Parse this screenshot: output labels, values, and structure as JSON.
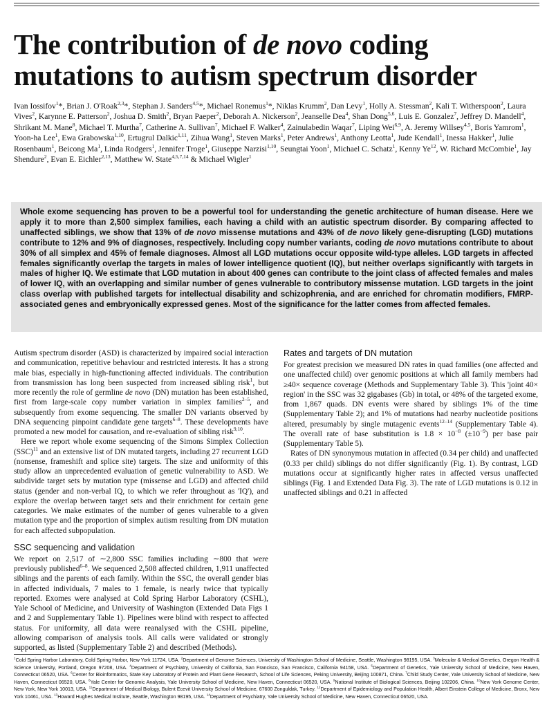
{
  "title": [
    "The contribution of ",
    {
      "i": "de novo"
    },
    " coding mutations to autism spectrum disorder"
  ],
  "authors": [
    "Ivan Iossifov",
    {
      "s": "1"
    },
    "*, Brian J. O'Roak",
    {
      "s": "2,3"
    },
    "*, Stephan J. Sanders",
    {
      "s": "4,5"
    },
    "*, Michael Ronemus",
    {
      "s": "1"
    },
    "*, Niklas Krumm",
    {
      "s": "2"
    },
    ", Dan Levy",
    {
      "s": "1"
    },
    ", Holly A. Stessman",
    {
      "s": "2"
    },
    ", Kali T. Witherspoon",
    {
      "s": "2"
    },
    ", Laura Vives",
    {
      "s": "2"
    },
    ", Karynne E. Patterson",
    {
      "s": "2"
    },
    ", Joshua D. Smith",
    {
      "s": "2"
    },
    ", Bryan Paeper",
    {
      "s": "2"
    },
    ", Deborah A. Nickerson",
    {
      "s": "2"
    },
    ", Jeanselle Dea",
    {
      "s": "4"
    },
    ", Shan Dong",
    {
      "s": "5,6"
    },
    ", Luis E. Gonzalez",
    {
      "s": "7"
    },
    ", Jeffrey D. Mandell",
    {
      "s": "4"
    },
    ", Shrikant M. Mane",
    {
      "s": "8"
    },
    ", Michael T. Murtha",
    {
      "s": "7"
    },
    ", Catherine A. Sullivan",
    {
      "s": "7"
    },
    ", Michael F. Walker",
    {
      "s": "4"
    },
    ", Zainulabedin Waqar",
    {
      "s": "7"
    },
    ", Liping Wei",
    {
      "s": "6,9"
    },
    ", A. Jeremy Willsey",
    {
      "s": "4,5"
    },
    ", Boris Yamrom",
    {
      "s": "1"
    },
    ", Yoon-ha Lee",
    {
      "s": "1"
    },
    ", Ewa Grabowska",
    {
      "s": "1,10"
    },
    ", Ertugrul Dalkic",
    {
      "s": "1,11"
    },
    ", Zihua Wang",
    {
      "s": "1"
    },
    ", Steven Marks",
    {
      "s": "1"
    },
    ", Peter Andrews",
    {
      "s": "1"
    },
    ", Anthony Leotta",
    {
      "s": "1"
    },
    ", Jude Kendall",
    {
      "s": "1"
    },
    ", Inessa Hakker",
    {
      "s": "1"
    },
    ", Julie Rosenbaum",
    {
      "s": "1"
    },
    ", Beicong Ma",
    {
      "s": "1"
    },
    ", Linda Rodgers",
    {
      "s": "1"
    },
    ", Jennifer Troge",
    {
      "s": "1"
    },
    ", Giuseppe Narzisi",
    {
      "s": "1,10"
    },
    ", Seungtai Yoon",
    {
      "s": "1"
    },
    ", Michael C. Schatz",
    {
      "s": "1"
    },
    ", Kenny Ye",
    {
      "s": "12"
    },
    ", W. Richard McCombie",
    {
      "s": "1"
    },
    ", Jay Shendure",
    {
      "s": "2"
    },
    ", Evan E. Eichler",
    {
      "s": "2,13"
    },
    ", Matthew W. State",
    {
      "s": "4,5,7,14"
    },
    " & Michael Wigler",
    {
      "s": "1"
    }
  ],
  "abstract": [
    "Whole exome sequencing has proven to be a powerful tool for understanding the genetic architecture of human disease. Here we apply it to more than 2,500 simplex families, each having a child with an autistic spectrum disorder. By comparing affected to unaffected siblings, we show that 13% of ",
    {
      "i": "de novo"
    },
    " missense mutations and 43% of ",
    {
      "i": "de novo"
    },
    " likely gene-disrupting (LGD) mutations contribute to 12% and 9% of diagnoses, respectively. Including copy number variants, coding ",
    {
      "i": "de novo"
    },
    " mutations contribute to about 30% of all simplex and 45% of female diagnoses. Almost all LGD mutations occur opposite wild-type alleles. LGD targets in affected females significantly overlap the targets in males of lower intelligence quotient (IQ), but neither overlaps significantly with targets in males of higher IQ. We estimate that LGD mutation in about 400 genes can contribute to the joint class of affected females and males of lower IQ, with an overlapping and similar number of genes vulnerable to contributory missense mutation. LGD targets in the joint class overlap with published targets for intellectual disability and schizophrenia, and are enriched for chromatin modifiers, FMRP-associated genes and embryonically expressed genes. Most of the significance for the latter comes from affected females."
  ],
  "body": [
    {
      "p": [
        "Autism spectrum disorder (ASD) is characterized by impaired social interaction and communication, repetitive behaviour and restricted interests. It has a strong male bias, especially in high-functioning affected individuals. The contribution from transmission has long been suspected from increased sibling risk",
        {
          "s": "1"
        },
        ", but more recently the role of germline ",
        {
          "i": "de novo"
        },
        " (DN) mutation has been established, first from large-scale copy number variation in simplex families",
        {
          "s": "2–5"
        },
        ", and subsequently from exome sequencing. The smaller DN variants observed by DNA sequencing pinpoint candidate gene targets",
        {
          "s": "6–8"
        },
        ". These developments have promoted a new model for causation, and re-evaluation of sibling risk",
        {
          "s": "9,10"
        },
        "."
      ]
    },
    {
      "p": [
        "Here we report whole exome sequencing of the Simons Simplex Collection (SSC)",
        {
          "s": "11"
        },
        " and an extensive list of DN mutated targets, including 27 recurrent LGD (nonsense, frameshift and splice site) targets. The size and uniformity of this study allow an unprecedented evaluation of genetic vulnerability to ASD. We subdivide target sets by mutation type (missense and LGD) and affected child status (gender and non-verbal IQ, to which we refer throughout as 'IQ'), and explore the overlap between target sets and their enrichment for certain gene categories. We make estimates of the number of genes vulnerable to a given mutation type and the proportion of simplex autism resulting from DN mutation for each affected subpopulation."
      ]
    },
    {
      "h": "SSC sequencing and validation"
    },
    {
      "p": [
        "We report on 2,517 of ∼2,800 SSC families including ∼800 that were previously published",
        {
          "s": "6–8"
        },
        ". We sequenced 2,508 affected children, 1,911 unaffected siblings and the parents of each family. Within the SSC, the overall gender bias in affected individuals, 7 males to 1 female, is nearly twice that typically reported. Exomes were analysed at Cold Spring Harbor Laboratory (CSHL), Yale School of Medicine, and University of Washington (Extended Data Figs 1 and 2 and Supplementary Table 1). Pipelines were blind with respect to affected status. For uniformity, all data were reanalysed with the CSHL pipeline, allowing comparison of analysis tools. All calls were validated or strongly supported, as listed (Supplementary Table 2) and described (Methods)."
      ]
    },
    {
      "h": "Rates and targets of DN mutation"
    },
    {
      "p": [
        "For greatest precision we measured DN rates in quad families (one affected and one unaffected child) over genomic positions at which all family members had ≥40× sequence coverage (Methods and Supplementary Table 3). This 'joint 40× region' in the SSC was 32 gigabases (Gb) in total, or 48% of the targeted exome, from 1,867 quads. DN events were shared by siblings 1% of the time (Supplementary Table 2); and 1% of mutations had nearby nucleotide positions altered, presumably by single mutagenic events",
        {
          "s": "12–14"
        },
        " (Supplementary Table 4). The overall rate of base substitution is 1.8 × 10",
        {
          "s": "−8"
        },
        " (±10",
        {
          "s": "−9"
        },
        ") per base pair (Supplementary Table 5)."
      ]
    },
    {
      "p": [
        "Rates of DN synonymous mutation in affected (0.34 per child) and unaffected (0.33 per child) siblings do not differ significantly (Fig. 1). By contrast, LGD mutations occur at significantly higher rates in affected versus unaffected siblings (Fig. 1 and Extended Data Fig. 3). The rate of LGD mutations is 0.12 in unaffected siblings and 0.21 in affected"
      ]
    }
  ],
  "footnote": [
    {
      "s": "1"
    },
    "Cold Spring Harbor Laboratory, Cold Spring Harbor, New York 11724, USA. ",
    {
      "s": "2"
    },
    "Department of Genome Sciences, University of Washington School of Medicine, Seattle, Washington 98195, USA. ",
    {
      "s": "3"
    },
    "Molecular & Medical Genetics, Oregon Health & Science University, Portland, Oregon 97208, USA. ",
    {
      "s": "4"
    },
    "Department of Psychiatry, University of California, San Francisco, San Francisco, California 94158, USA. ",
    {
      "s": "5"
    },
    "Department of Genetics, Yale University School of Medicine, New Haven, Connecticut 06520, USA. ",
    {
      "s": "6"
    },
    "Center for Bioinformatics, State Key Laboratory of Protein and Plant Gene Research, School of Life Sciences, Peking University, Beijing 100871, China. ",
    {
      "s": "7"
    },
    "Child Study Center, Yale University School of Medicine, New Haven, Connecticut 06520, USA. ",
    {
      "s": "8"
    },
    "Yale Center for Genomic Analysis, Yale University School of Medicine, New Haven, Connecticut 06520, USA. ",
    {
      "s": "9"
    },
    "National Institute of Biological Sciences, Beijing 102206, China. ",
    {
      "s": "10"
    },
    "New York Genome Center, New York, New York 10013, USA. ",
    {
      "s": "11"
    },
    "Department of Medical Biology, Bulent Ecevit University School of Medicine, 67600 Zonguldak, Turkey. ",
    {
      "s": "12"
    },
    "Department of Epidemiology and Population Health, Albert Einstein College of Medicine, Bronx, New York 10461, USA. ",
    {
      "s": "13"
    },
    "Howard Hughes Medical Institute, Seattle, Washington 98195, USA. ",
    {
      "s": "14"
    },
    "Department of Psychiatry, Yale University School of Medicine, New Haven, Connecticut 06520, USA."
  ]
}
